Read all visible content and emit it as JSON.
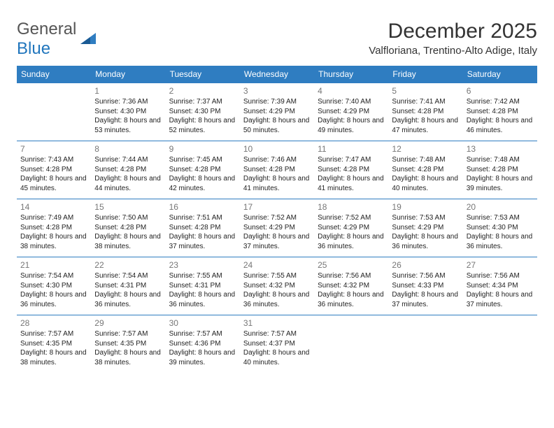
{
  "brand": {
    "part1": "General",
    "part2": "Blue"
  },
  "title": "December 2025",
  "location": "Valfloriana, Trentino-Alto Adige, Italy",
  "header_bg": "#2f7dc1",
  "days_of_week": [
    "Sunday",
    "Monday",
    "Tuesday",
    "Wednesday",
    "Thursday",
    "Friday",
    "Saturday"
  ],
  "weeks": [
    [
      null,
      {
        "d": "1",
        "sr": "7:36 AM",
        "ss": "4:30 PM",
        "dl": "8 hours and 53 minutes."
      },
      {
        "d": "2",
        "sr": "7:37 AM",
        "ss": "4:30 PM",
        "dl": "8 hours and 52 minutes."
      },
      {
        "d": "3",
        "sr": "7:39 AM",
        "ss": "4:29 PM",
        "dl": "8 hours and 50 minutes."
      },
      {
        "d": "4",
        "sr": "7:40 AM",
        "ss": "4:29 PM",
        "dl": "8 hours and 49 minutes."
      },
      {
        "d": "5",
        "sr": "7:41 AM",
        "ss": "4:28 PM",
        "dl": "8 hours and 47 minutes."
      },
      {
        "d": "6",
        "sr": "7:42 AM",
        "ss": "4:28 PM",
        "dl": "8 hours and 46 minutes."
      }
    ],
    [
      {
        "d": "7",
        "sr": "7:43 AM",
        "ss": "4:28 PM",
        "dl": "8 hours and 45 minutes."
      },
      {
        "d": "8",
        "sr": "7:44 AM",
        "ss": "4:28 PM",
        "dl": "8 hours and 44 minutes."
      },
      {
        "d": "9",
        "sr": "7:45 AM",
        "ss": "4:28 PM",
        "dl": "8 hours and 42 minutes."
      },
      {
        "d": "10",
        "sr": "7:46 AM",
        "ss": "4:28 PM",
        "dl": "8 hours and 41 minutes."
      },
      {
        "d": "11",
        "sr": "7:47 AM",
        "ss": "4:28 PM",
        "dl": "8 hours and 41 minutes."
      },
      {
        "d": "12",
        "sr": "7:48 AM",
        "ss": "4:28 PM",
        "dl": "8 hours and 40 minutes."
      },
      {
        "d": "13",
        "sr": "7:48 AM",
        "ss": "4:28 PM",
        "dl": "8 hours and 39 minutes."
      }
    ],
    [
      {
        "d": "14",
        "sr": "7:49 AM",
        "ss": "4:28 PM",
        "dl": "8 hours and 38 minutes."
      },
      {
        "d": "15",
        "sr": "7:50 AM",
        "ss": "4:28 PM",
        "dl": "8 hours and 38 minutes."
      },
      {
        "d": "16",
        "sr": "7:51 AM",
        "ss": "4:28 PM",
        "dl": "8 hours and 37 minutes."
      },
      {
        "d": "17",
        "sr": "7:52 AM",
        "ss": "4:29 PM",
        "dl": "8 hours and 37 minutes."
      },
      {
        "d": "18",
        "sr": "7:52 AM",
        "ss": "4:29 PM",
        "dl": "8 hours and 36 minutes."
      },
      {
        "d": "19",
        "sr": "7:53 AM",
        "ss": "4:29 PM",
        "dl": "8 hours and 36 minutes."
      },
      {
        "d": "20",
        "sr": "7:53 AM",
        "ss": "4:30 PM",
        "dl": "8 hours and 36 minutes."
      }
    ],
    [
      {
        "d": "21",
        "sr": "7:54 AM",
        "ss": "4:30 PM",
        "dl": "8 hours and 36 minutes."
      },
      {
        "d": "22",
        "sr": "7:54 AM",
        "ss": "4:31 PM",
        "dl": "8 hours and 36 minutes."
      },
      {
        "d": "23",
        "sr": "7:55 AM",
        "ss": "4:31 PM",
        "dl": "8 hours and 36 minutes."
      },
      {
        "d": "24",
        "sr": "7:55 AM",
        "ss": "4:32 PM",
        "dl": "8 hours and 36 minutes."
      },
      {
        "d": "25",
        "sr": "7:56 AM",
        "ss": "4:32 PM",
        "dl": "8 hours and 36 minutes."
      },
      {
        "d": "26",
        "sr": "7:56 AM",
        "ss": "4:33 PM",
        "dl": "8 hours and 37 minutes."
      },
      {
        "d": "27",
        "sr": "7:56 AM",
        "ss": "4:34 PM",
        "dl": "8 hours and 37 minutes."
      }
    ],
    [
      {
        "d": "28",
        "sr": "7:57 AM",
        "ss": "4:35 PM",
        "dl": "8 hours and 38 minutes."
      },
      {
        "d": "29",
        "sr": "7:57 AM",
        "ss": "4:35 PM",
        "dl": "8 hours and 38 minutes."
      },
      {
        "d": "30",
        "sr": "7:57 AM",
        "ss": "4:36 PM",
        "dl": "8 hours and 39 minutes."
      },
      {
        "d": "31",
        "sr": "7:57 AM",
        "ss": "4:37 PM",
        "dl": "8 hours and 40 minutes."
      },
      null,
      null,
      null
    ]
  ],
  "labels": {
    "sunrise": "Sunrise:",
    "sunset": "Sunset:",
    "daylight": "Daylight:"
  }
}
